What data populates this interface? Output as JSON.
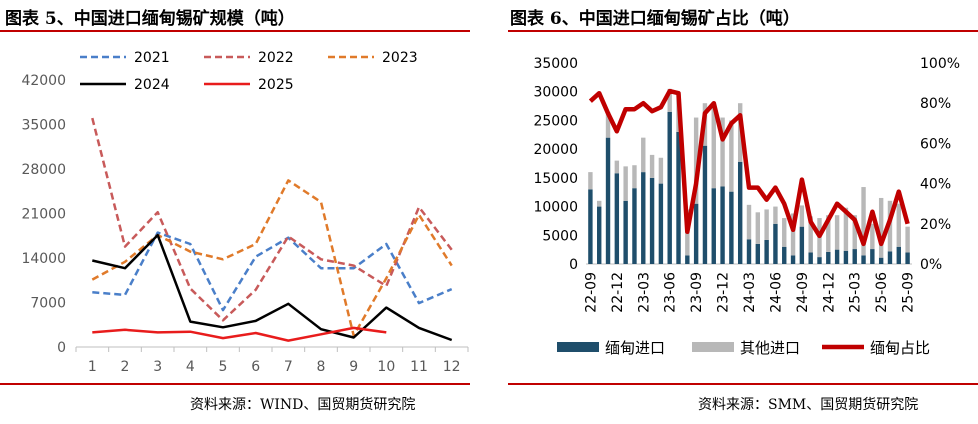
{
  "left": {
    "title": "图表 5、中国进口缅甸锡矿规模（吨）",
    "source": "资料来源：WIND、国贸期货研究院"
  },
  "right": {
    "title": "图表 6、中国进口缅甸锡矿占比（吨）",
    "source": "资料来源：SMM、国贸期货研究院"
  },
  "chart_data": [
    {
      "type": "line",
      "title": "中国进口缅甸锡矿规模（吨）",
      "x": [
        "1",
        "2",
        "3",
        "4",
        "5",
        "6",
        "7",
        "8",
        "9",
        "10",
        "11",
        "12"
      ],
      "ylim": [
        0,
        42000
      ],
      "yticks": [
        "0",
        "7000",
        "14000",
        "21000",
        "28000",
        "35000",
        "42000"
      ],
      "legend_position": "top",
      "series": [
        {
          "name": "2021",
          "color": "#4a7fc9",
          "dash": "dashed",
          "values": [
            8600,
            8200,
            18000,
            16200,
            5800,
            14200,
            17200,
            12400,
            12400,
            16200,
            6900,
            9100
          ]
        },
        {
          "name": "2022",
          "color": "#c85a5a",
          "dash": "dashed",
          "values": [
            36000,
            15800,
            21200,
            9200,
            4200,
            9000,
            17400,
            13800,
            12800,
            9600,
            22000,
            15300
          ]
        },
        {
          "name": "2023",
          "color": "#e07a2a",
          "dash": "dashed",
          "values": [
            10600,
            13400,
            17600,
            15000,
            13800,
            16200,
            26200,
            22800,
            1800,
            10800,
            20800,
            12800
          ]
        },
        {
          "name": "2024",
          "color": "#000000",
          "dash": "solid",
          "values": [
            13600,
            12400,
            17600,
            4000,
            3100,
            4100,
            6800,
            2800,
            1500,
            6200,
            3000,
            1100
          ]
        },
        {
          "name": "2025",
          "color": "#e81c1c",
          "dash": "solid",
          "values": [
            2300,
            2700,
            2300,
            2400,
            1400,
            2200,
            1000,
            2000,
            3000,
            2300,
            null,
            null
          ]
        }
      ]
    },
    {
      "type": "bar",
      "title": "中国进口缅甸锡矿占比（吨）",
      "categories": [
        "22-09",
        "22-10",
        "22-11",
        "22-12",
        "23-01",
        "23-02",
        "23-03",
        "23-04",
        "23-05",
        "23-06",
        "23-07",
        "23-08",
        "23-09",
        "23-10",
        "23-11",
        "23-12",
        "24-01",
        "24-02",
        "24-03",
        "24-04",
        "24-05",
        "24-06",
        "24-07",
        "24-08",
        "24-09",
        "24-10",
        "24-11",
        "24-12",
        "25-01",
        "25-02",
        "25-03",
        "25-04",
        "25-05",
        "25-06",
        "25-07",
        "25-08",
        "25-09"
      ],
      "xtick_labels": [
        "22-09",
        "22-12",
        "23-03",
        "23-06",
        "23-09",
        "23-12",
        "24-03",
        "24-06",
        "24-09",
        "24-12",
        "25-03",
        "25-06",
        "25-09"
      ],
      "ylim": [
        0,
        35000
      ],
      "yticks": [
        "0",
        "5000",
        "10000",
        "15000",
        "20000",
        "25000",
        "30000",
        "35000"
      ],
      "y2lim": [
        0,
        100
      ],
      "y2ticks": [
        "0%",
        "20%",
        "40%",
        "60%",
        "80%",
        "100%"
      ],
      "legend_position": "bottom",
      "series": [
        {
          "name": "缅甸进口",
          "type": "bar-stack",
          "color": "#1f4e6b",
          "values": [
            13000,
            10000,
            22000,
            15800,
            11000,
            13200,
            16000,
            15000,
            14000,
            26500,
            23000,
            1500,
            10500,
            20600,
            13200,
            13500,
            12600,
            17800,
            4300,
            3500,
            4200,
            7000,
            3000,
            1500,
            6500,
            2000,
            1200,
            2100,
            2500,
            2300,
            2600,
            1500,
            2600,
            1100,
            2200,
            3000,
            2000
          ]
        },
        {
          "name": "其他进口",
          "type": "bar-stack",
          "color": "#b8b8b8",
          "values": [
            3000,
            1000,
            4500,
            2200,
            6000,
            4000,
            6000,
            4000,
            4500,
            4000,
            6500,
            8000,
            15000,
            7400,
            14800,
            12000,
            12400,
            10200,
            6000,
            5500,
            5300,
            3000,
            5000,
            7300,
            3700,
            6300,
            6800,
            6400,
            6000,
            7500,
            5900,
            11900,
            4400,
            10400,
            8800,
            7500,
            4500
          ]
        },
        {
          "name": "缅甸占比",
          "type": "line",
          "color": "#c00000",
          "axis": "right",
          "values": [
            81,
            85,
            75,
            66,
            77,
            77,
            80,
            76,
            78,
            86,
            85,
            16,
            40,
            75,
            80,
            62,
            70,
            74,
            38,
            38,
            32,
            38,
            30,
            17,
            42,
            21,
            14,
            22,
            30,
            26,
            22,
            10,
            26,
            10,
            22,
            36,
            20
          ]
        }
      ]
    }
  ]
}
